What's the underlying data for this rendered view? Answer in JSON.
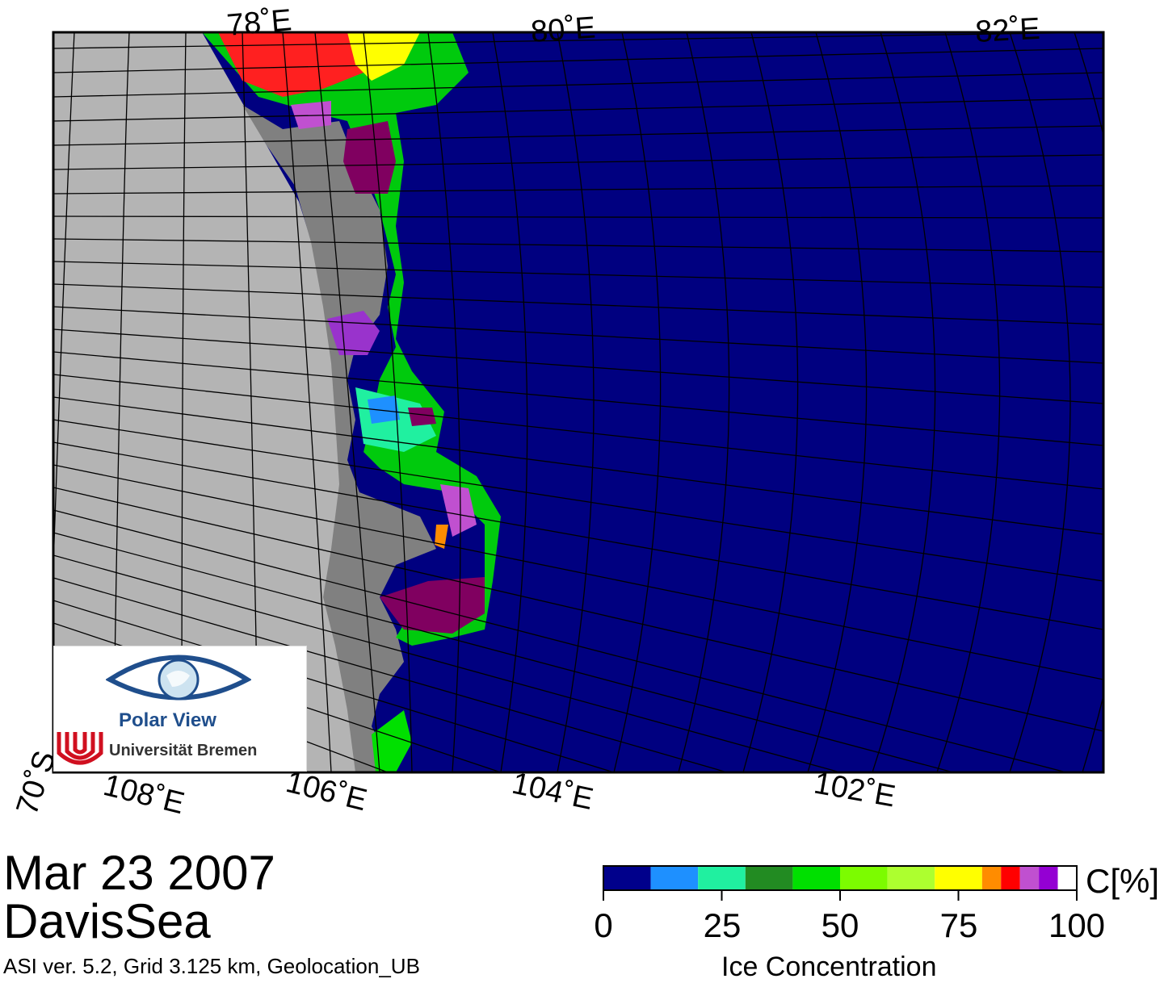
{
  "map": {
    "lat_labels": [
      "78˚E",
      "80˚E",
      "82˚E"
    ],
    "bottom_labels": [
      "70˚S",
      "108˚E",
      "106˚E",
      "104˚E",
      "102˚E"
    ],
    "colors": {
      "ocean": "#000080",
      "land": "#b4b4b4",
      "shelf": "#808080",
      "grid": "#000000"
    }
  },
  "logo": {
    "title": "Polar View",
    "institution": "Universität Bremen",
    "icon": "eye-globe-icon",
    "crest_icon": "bremen-crest-icon"
  },
  "caption": {
    "date": "Mar 23 2007",
    "region": "DavisSea",
    "meta": "ASI ver. 5.2,  Grid 3.125 km, Geolocation_UB"
  },
  "colorbar": {
    "unit": "C[%]",
    "title": "Ice Concentration",
    "ticks": [
      "0",
      "25",
      "50",
      "75",
      "100"
    ],
    "colors": [
      "#00008b",
      "#1e90ff",
      "#20f0a0",
      "#228b22",
      "#00e000",
      "#7cfc00",
      "#adff2f",
      "#ffff00",
      "#ff8c00",
      "#ff0000",
      "#c050d0",
      "#9400d3",
      "#ffffff"
    ]
  }
}
